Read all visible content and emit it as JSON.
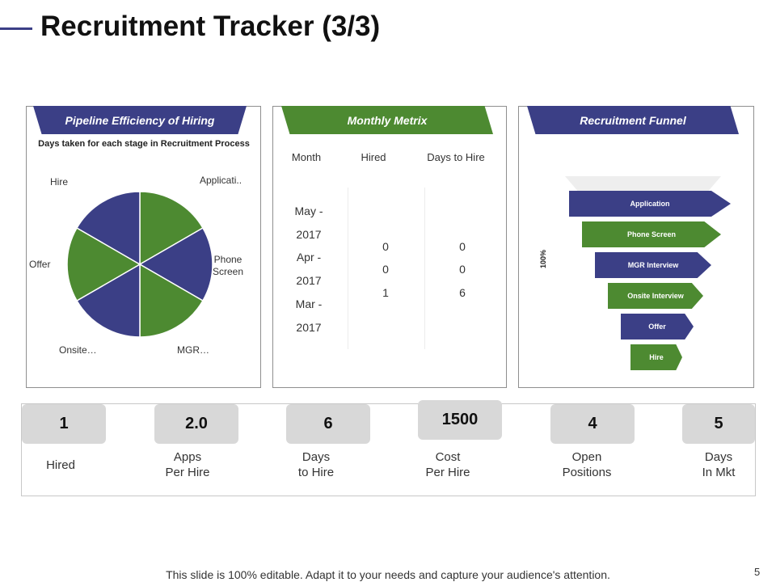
{
  "slide": {
    "title": "Recruitment Tracker (3/3)",
    "footer": "This slide is 100% editable. Adapt it to your needs and capture your audience's attention.",
    "page_number": "5"
  },
  "colors": {
    "blue": "#3b3f86",
    "green": "#4d8a31",
    "kpi_box": "#d8d8d8"
  },
  "pipeline": {
    "header": "Pipeline Efficiency  of Hiring",
    "chart_title": "Days taken for each stage in Recruitment Process",
    "labels": [
      "Applicati..",
      "Phone\nScreen",
      "MGR…",
      "Onsite…",
      "Offer",
      "Hire"
    ]
  },
  "chart_data": {
    "type": "pie",
    "title": "Days taken for each stage in Recruitment Process",
    "categories": [
      "Application",
      "Phone Screen",
      "MGR Interview",
      "Onsite Interview",
      "Offer",
      "Hire"
    ],
    "values": [
      1,
      1,
      1,
      1,
      1,
      1
    ],
    "colors": [
      "#4d8a31",
      "#3b3f86",
      "#4d8a31",
      "#3b3f86",
      "#4d8a31",
      "#3b3f86"
    ]
  },
  "metrix": {
    "header": "Monthly Metrix",
    "columns": [
      "Month",
      "Hired",
      "Days to Hire"
    ],
    "months": [
      "May -",
      "2017",
      "Apr -",
      "2017",
      "Mar -",
      "2017"
    ],
    "hired": [
      "0",
      "0",
      "1"
    ],
    "days_to_hire": [
      "0",
      "0",
      "6"
    ]
  },
  "funnel": {
    "header": "Recruitment Funnel",
    "axis_label": "100%",
    "stages": [
      "Application",
      "Phone Screen",
      "MGR Interview",
      "Onsite Interview",
      "Offer",
      "Hire"
    ]
  },
  "kpis": [
    {
      "value": "1",
      "label": "Hired"
    },
    {
      "value": "2.0",
      "label": "Apps\nPer Hire"
    },
    {
      "value": "6",
      "label": "Days\nto Hire"
    },
    {
      "value": "1500",
      "label": "Cost\nPer Hire"
    },
    {
      "value": "4",
      "label": "Open\nPositions"
    },
    {
      "value": "5",
      "label": "Days\nIn Mkt"
    }
  ]
}
